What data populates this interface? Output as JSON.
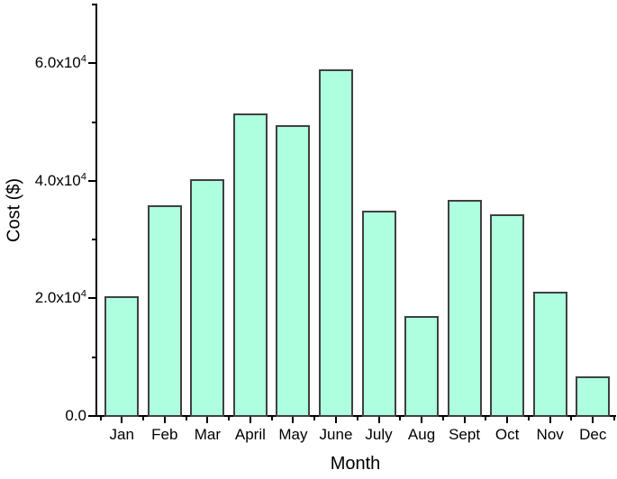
{
  "chart_data": {
    "type": "bar",
    "title": "",
    "xlabel": "Month",
    "ylabel": "Cost ($)",
    "categories": [
      "Jan",
      "Feb",
      "Mar",
      "April",
      "May",
      "June",
      "July",
      "Aug",
      "Sept",
      "Oct",
      "Nov",
      "Dec"
    ],
    "values": [
      20300,
      35800,
      40300,
      51500,
      49500,
      59000,
      35000,
      17000,
      36800,
      34300,
      21200,
      6800
    ],
    "ylim": [
      0,
      70000
    ],
    "ytick_major": [
      {
        "label": "0.0",
        "exp": "",
        "value": 0
      },
      {
        "label": "2.0x10",
        "exp": "4",
        "value": 20000
      },
      {
        "label": "4.0x10",
        "exp": "4",
        "value": 40000
      },
      {
        "label": "6.0x10",
        "exp": "4",
        "value": 60000
      }
    ],
    "ytick_minor": [
      10000,
      30000,
      50000,
      70000
    ],
    "grid": false,
    "legend": null,
    "bar_fill": "#ADFFDF",
    "bar_stroke": "#404040",
    "axis_color": "#000000",
    "text_color": "#000000"
  }
}
